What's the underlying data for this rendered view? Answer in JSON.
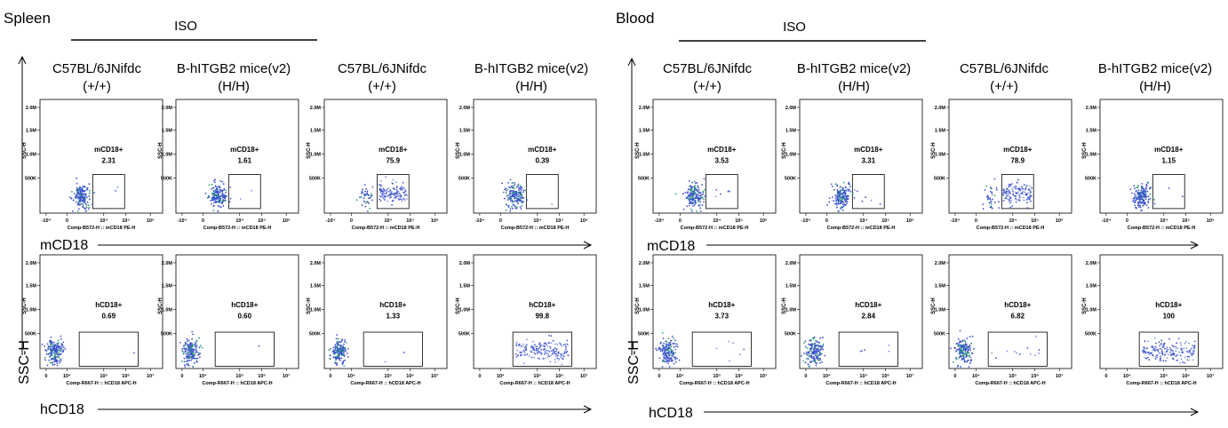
{
  "figure": {
    "tissues": [
      "Spleen",
      "Blood"
    ],
    "control_label": "ISO",
    "columns": [
      {
        "strain": "C57BL/6JNifdc",
        "genotype": "(+/+)"
      },
      {
        "strain": "B-hITGB2 mice(v2)",
        "genotype": "(H/H)"
      },
      {
        "strain": "C57BL/6JNifdc",
        "genotype": "(+/+)"
      },
      {
        "strain": "B-hITGB2 mice(v2)",
        "genotype": "(H/H)"
      }
    ],
    "y_axis_title": "SSC-H",
    "row_axis_titles": [
      "mCD18",
      "hCD18"
    ],
    "plot_y_label": "SSC-H",
    "y_ticks": [
      "2.0M",
      "1.5M",
      "1.0M",
      "500K"
    ],
    "rows": [
      {
        "marker": "mCD18",
        "gate_name": "mCD18+",
        "x_label": "Comp-B572-H :: mCD18 PE-H",
        "x_ticks": [
          "-10⁴",
          "0",
          "10⁴",
          "10⁵",
          "10⁶"
        ]
      },
      {
        "marker": "hCD18",
        "gate_name": "hCD18+",
        "x_label": "Comp-R667-H :: hCD18 APC-H",
        "x_ticks": [
          "0",
          "10⁴",
          "10⁵",
          "10⁶",
          "10⁷"
        ]
      }
    ]
  },
  "chart_data": {
    "type": "scatter",
    "description_of_values": "gated population percentage per flow cytometry panel",
    "x_scale": "log",
    "y_scale": "linear",
    "y_range": [
      0,
      2000000
    ],
    "panels": [
      {
        "tissue": "Spleen",
        "marker": "mCD18",
        "column": 0,
        "gate": "mCD18+",
        "percent": "2.31"
      },
      {
        "tissue": "Spleen",
        "marker": "mCD18",
        "column": 1,
        "gate": "mCD18+",
        "percent": "1.61"
      },
      {
        "tissue": "Spleen",
        "marker": "mCD18",
        "column": 2,
        "gate": "mCD18+",
        "percent": "75.9"
      },
      {
        "tissue": "Spleen",
        "marker": "mCD18",
        "column": 3,
        "gate": "mCD18+",
        "percent": "0.39"
      },
      {
        "tissue": "Blood",
        "marker": "mCD18",
        "column": 0,
        "gate": "mCD18+",
        "percent": "3.53"
      },
      {
        "tissue": "Blood",
        "marker": "mCD18",
        "column": 1,
        "gate": "mCD18+",
        "percent": "3.31"
      },
      {
        "tissue": "Blood",
        "marker": "mCD18",
        "column": 2,
        "gate": "mCD18+",
        "percent": "78.9"
      },
      {
        "tissue": "Blood",
        "marker": "mCD18",
        "column": 3,
        "gate": "mCD18+",
        "percent": "1.15"
      },
      {
        "tissue": "Spleen",
        "marker": "hCD18",
        "column": 0,
        "gate": "hCD18+",
        "percent": "0.69"
      },
      {
        "tissue": "Spleen",
        "marker": "hCD18",
        "column": 1,
        "gate": "hCD18+",
        "percent": "0.60"
      },
      {
        "tissue": "Spleen",
        "marker": "hCD18",
        "column": 2,
        "gate": "hCD18+",
        "percent": "1.33"
      },
      {
        "tissue": "Spleen",
        "marker": "hCD18",
        "column": 3,
        "gate": "hCD18+",
        "percent": "99.8"
      },
      {
        "tissue": "Blood",
        "marker": "hCD18",
        "column": 0,
        "gate": "hCD18+",
        "percent": "3.73"
      },
      {
        "tissue": "Blood",
        "marker": "hCD18",
        "column": 1,
        "gate": "hCD18+",
        "percent": "2.84"
      },
      {
        "tissue": "Blood",
        "marker": "hCD18",
        "column": 2,
        "gate": "hCD18+",
        "percent": "6.82"
      },
      {
        "tissue": "Blood",
        "marker": "hCD18",
        "column": 3,
        "gate": "hCD18+",
        "percent": "100"
      }
    ]
  },
  "colors": {
    "ink": "#000000",
    "dot_primary": "#3b4fd1",
    "dot_dense": "#2aa36b",
    "dot_light": "#7f8fe6"
  }
}
